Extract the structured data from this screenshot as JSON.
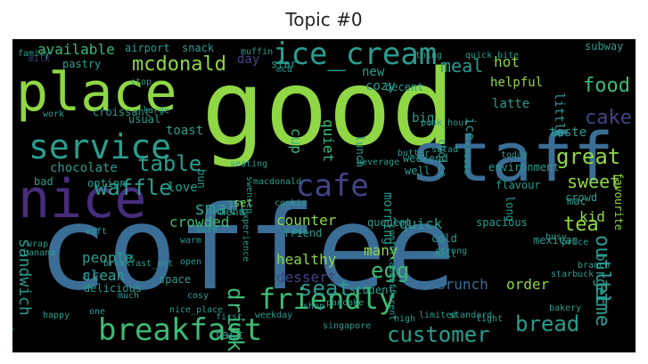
{
  "title": "Topic #0",
  "colors": {
    "background": "#000000",
    "palette": {
      "lime": "#8fd744",
      "green": "#3cbb75",
      "teal": "#2a9d8f",
      "blue": "#3a6e96",
      "indigo": "#414487",
      "purple": "#472d7b",
      "mint": "#6fcf97"
    }
  },
  "words": [
    {
      "text": "good",
      "color": "lime"
    },
    {
      "text": "coffee",
      "color": "blue"
    },
    {
      "text": "staff",
      "color": "blue"
    },
    {
      "text": "place",
      "color": "lime"
    },
    {
      "text": "nice",
      "color": "purple"
    },
    {
      "text": "service",
      "color": "teal"
    },
    {
      "text": "ice_cream",
      "color": "teal"
    },
    {
      "text": "breakfast",
      "color": "green"
    },
    {
      "text": "friendly",
      "color": "green"
    },
    {
      "text": "cafe",
      "color": "indigo"
    },
    {
      "text": "waffle",
      "color": "teal"
    },
    {
      "text": "mcdonald",
      "color": "lime"
    },
    {
      "text": "food",
      "color": "green"
    },
    {
      "text": "cake",
      "color": "indigo"
    },
    {
      "text": "great",
      "color": "lime"
    },
    {
      "text": "sweet",
      "color": "lime"
    },
    {
      "text": "customer",
      "color": "teal"
    },
    {
      "text": "bread",
      "color": "teal"
    },
    {
      "text": "table",
      "color": "teal"
    },
    {
      "text": "meal",
      "color": "teal"
    },
    {
      "text": "tea",
      "color": "lime"
    },
    {
      "text": "egg",
      "color": "green"
    },
    {
      "text": "seat",
      "color": "teal"
    },
    {
      "text": "drink",
      "color": "green"
    },
    {
      "text": "time",
      "color": "teal"
    },
    {
      "text": "outlet",
      "color": "teal"
    },
    {
      "text": "sandwich",
      "color": "teal"
    },
    {
      "text": "small",
      "color": "teal"
    },
    {
      "text": "chocolate",
      "color": "teal"
    },
    {
      "text": "toast",
      "color": "teal"
    },
    {
      "text": "crowded",
      "color": "green"
    },
    {
      "text": "quiet",
      "color": "green"
    },
    {
      "text": "cup",
      "color": "green"
    },
    {
      "text": "available",
      "color": "green"
    },
    {
      "text": "love",
      "color": "teal"
    },
    {
      "text": "area",
      "color": "blue"
    },
    {
      "text": "people",
      "color": "teal"
    },
    {
      "text": "clean",
      "color": "teal"
    },
    {
      "text": "healthy",
      "color": "lime"
    },
    {
      "text": "dessert",
      "color": "indigo"
    },
    {
      "text": "counter",
      "color": "lime"
    },
    {
      "text": "quick",
      "color": "teal"
    },
    {
      "text": "morning",
      "color": "teal"
    },
    {
      "text": "kid",
      "color": "lime"
    },
    {
      "text": "burger",
      "color": "teal"
    },
    {
      "text": "order",
      "color": "lime"
    },
    {
      "text": "brunch",
      "color": "blue"
    },
    {
      "text": "many",
      "color": "lime"
    },
    {
      "text": "fast",
      "color": "teal"
    },
    {
      "text": "hot",
      "color": "lime"
    },
    {
      "text": "new",
      "color": "teal"
    },
    {
      "text": "big",
      "color": "teal"
    },
    {
      "text": "little",
      "color": "teal"
    },
    {
      "text": "taste",
      "color": "teal"
    },
    {
      "text": "helpful",
      "color": "lime"
    },
    {
      "text": "latte",
      "color": "teal"
    },
    {
      "text": "cozy",
      "color": "teal"
    },
    {
      "text": "day",
      "color": "indigo"
    },
    {
      "text": "star",
      "color": "teal"
    },
    {
      "text": "pastry",
      "color": "teal"
    },
    {
      "text": "bad",
      "color": "teal"
    },
    {
      "text": "option",
      "color": "teal"
    },
    {
      "text": "environment",
      "color": "teal"
    },
    {
      "text": "flavour",
      "color": "teal"
    },
    {
      "text": "mac",
      "color": "teal"
    },
    {
      "text": "choice",
      "color": "teal"
    },
    {
      "text": "ice",
      "color": "teal"
    },
    {
      "text": "lunch",
      "color": "teal"
    },
    {
      "text": "delicious",
      "color": "teal"
    },
    {
      "text": "space",
      "color": "teal"
    },
    {
      "text": "cold",
      "color": "teal"
    },
    {
      "text": "spacious",
      "color": "teal"
    },
    {
      "text": "queue",
      "color": "teal"
    },
    {
      "text": "student",
      "color": "teal"
    },
    {
      "text": "shop",
      "color": "teal"
    },
    {
      "text": "pancake",
      "color": "teal"
    },
    {
      "text": "high",
      "color": "teal"
    },
    {
      "text": "standard",
      "color": "teal"
    },
    {
      "text": "friend",
      "color": "teal"
    },
    {
      "text": "menu",
      "color": "teal"
    },
    {
      "text": "set",
      "color": "lime"
    },
    {
      "text": "bun",
      "color": "teal"
    },
    {
      "text": "weekend",
      "color": "teal"
    },
    {
      "text": "well",
      "color": "teal"
    },
    {
      "text": "mexican",
      "color": "teal"
    },
    {
      "text": "favourite",
      "color": "lime"
    },
    {
      "text": "long",
      "color": "teal"
    },
    {
      "text": "crowd",
      "color": "teal"
    },
    {
      "text": "lot",
      "color": "teal"
    },
    {
      "text": "usual",
      "color": "teal"
    },
    {
      "text": "croissant",
      "color": "teal"
    },
    {
      "text": "decent",
      "color": "teal"
    },
    {
      "text": "swensen",
      "color": "teal"
    },
    {
      "text": "convenient",
      "color": "teal"
    },
    {
      "text": "subway",
      "color": "teal"
    },
    {
      "text": "mcd",
      "color": "teal"
    },
    {
      "text": "cheese",
      "color": "teal"
    },
    {
      "text": "snack",
      "color": "teal"
    },
    {
      "text": "airport",
      "color": "teal"
    },
    {
      "text": "seating",
      "color": "teal"
    },
    {
      "text": "butter",
      "color": "teal"
    },
    {
      "text": "cookie",
      "color": "teal"
    },
    {
      "text": "bit",
      "color": "teal"
    },
    {
      "text": "warm",
      "color": "teal"
    },
    {
      "text": "soft",
      "color": "teal"
    },
    {
      "text": "stop",
      "color": "teal"
    },
    {
      "text": "one",
      "color": "teal"
    },
    {
      "text": "much",
      "color": "teal"
    },
    {
      "text": "first",
      "color": "teal"
    },
    {
      "text": "weekday",
      "color": "teal"
    },
    {
      "text": "singapore",
      "color": "teal"
    },
    {
      "text": "limited",
      "color": "teal"
    },
    {
      "text": "light",
      "color": "teal"
    },
    {
      "text": "mall",
      "color": "teal"
    },
    {
      "text": "busy",
      "color": "teal"
    },
    {
      "text": "comfortable",
      "color": "teal"
    },
    {
      "text": "different",
      "color": "teal"
    },
    {
      "text": "bakery",
      "color": "teal"
    },
    {
      "text": "salad",
      "color": "teal"
    },
    {
      "text": "today",
      "color": "teal"
    },
    {
      "text": "cosy",
      "color": "teal"
    },
    {
      "text": "experience",
      "color": "teal"
    },
    {
      "text": "macdonald",
      "color": "teal"
    },
    {
      "text": "starbuck",
      "color": "teal"
    },
    {
      "text": "branch",
      "color": "teal"
    },
    {
      "text": "work",
      "color": "teal"
    },
    {
      "text": "large",
      "color": "teal"
    },
    {
      "text": "thing",
      "color": "teal"
    },
    {
      "text": "quick_bite",
      "color": "teal"
    },
    {
      "text": "muffin",
      "color": "teal"
    },
    {
      "text": "family",
      "color": "teal"
    },
    {
      "text": "price",
      "color": "teal"
    },
    {
      "text": "strong",
      "color": "teal"
    },
    {
      "text": "peak_hour",
      "color": "teal"
    },
    {
      "text": "fry",
      "color": "teal"
    },
    {
      "text": "milk",
      "color": "indigo"
    },
    {
      "text": "wrap",
      "color": "teal"
    },
    {
      "text": "happy",
      "color": "teal"
    },
    {
      "text": "open",
      "color": "teal"
    },
    {
      "text": "sure",
      "color": "teal"
    },
    {
      "text": "banana",
      "color": "teal"
    },
    {
      "text": "breakfast_set",
      "color": "teal"
    },
    {
      "text": "nice_place",
      "color": "teal"
    },
    {
      "text": "beverage",
      "color": "teal"
    }
  ]
}
